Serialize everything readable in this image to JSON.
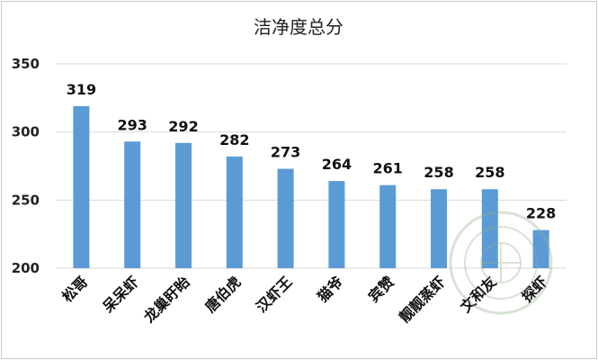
{
  "chart_data": {
    "type": "bar",
    "title": "洁净度总分",
    "xlabel": "",
    "ylabel": "",
    "ylim": [
      200,
      350
    ],
    "yticks": [
      200,
      250,
      300,
      350
    ],
    "grid": true,
    "legend": "none",
    "categories": [
      "松哥",
      "呆呆虾",
      "龙巢盱眙",
      "唐伯虎",
      "汉虾王",
      "猫爷",
      "宾赞",
      "靓靓蒸虾",
      "文和友",
      "探虾"
    ],
    "values": [
      319,
      293,
      292,
      282,
      273,
      264,
      261,
      258,
      258,
      228
    ],
    "bar_color": "#5b9bd5"
  }
}
